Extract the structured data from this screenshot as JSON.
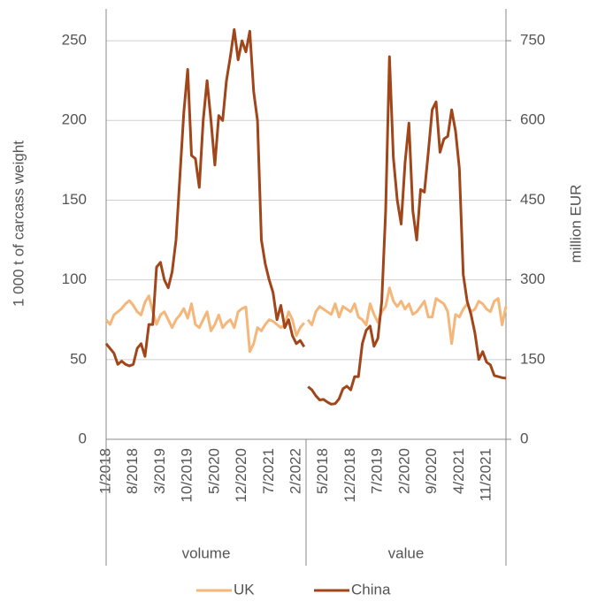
{
  "chart_data": {
    "type": "line",
    "y_label": "1 000 t of carcass weight",
    "y2_label": "million EUR",
    "ylim": [
      0,
      270
    ],
    "yticks": [
      0,
      50,
      100,
      150,
      200,
      250
    ],
    "y2lim": [
      0,
      810
    ],
    "y2ticks": [
      0,
      150,
      300,
      450,
      600,
      750
    ],
    "grid": true,
    "legend": "bottom",
    "series": [
      {
        "name": "UK",
        "color": "#f5b67a"
      },
      {
        "name": "China",
        "color": "#a0461a"
      }
    ],
    "groups": [
      {
        "name": "volume",
        "axis": "y",
        "categories": [
          "1/2018",
          null,
          null,
          null,
          null,
          null,
          null,
          "8/2018",
          null,
          null,
          null,
          null,
          null,
          null,
          "3/2019",
          null,
          null,
          null,
          null,
          null,
          null,
          "10/2019",
          null,
          null,
          null,
          null,
          null,
          null,
          "5/2020",
          null,
          null,
          null,
          null,
          null,
          null,
          "12/2020",
          null,
          null,
          null,
          null,
          null,
          null,
          "7/2021",
          null,
          null,
          null,
          null,
          null,
          null,
          "2/2022",
          null,
          null
        ],
        "series": [
          {
            "values": [
              75,
              72,
              78,
              80,
              82,
              85,
              87,
              84,
              80,
              78,
              86,
              90,
              80,
              72,
              78,
              80,
              75,
              70,
              75,
              78,
              82,
              76,
              85,
              72,
              70,
              75,
              80,
              68,
              72,
              78,
              70,
              73,
              75,
              70,
              80,
              82,
              83,
              55,
              60,
              70,
              68,
              72,
              75,
              74,
              72,
              70,
              72,
              80,
              75,
              65,
              70,
              73
            ]
          },
          {
            "values": [
              60,
              57,
              54,
              47,
              49,
              47,
              46,
              47,
              57,
              60,
              52,
              72,
              72,
              108,
              111,
              100,
              95,
              105,
              125,
              165,
              205,
              232,
              178,
              176,
              158,
              200,
              225,
              200,
              172,
              203,
              200,
              225,
              240,
              257,
              238,
              250,
              243,
              256,
              218,
              200,
              125,
              110,
              100,
              92,
              75,
              84,
              70,
              75,
              65,
              60,
              62,
              58
            ]
          }
        ]
      },
      {
        "name": "value",
        "axis": "y2",
        "categories": [
          null,
          null,
          null,
          null,
          "5/2018",
          null,
          null,
          null,
          null,
          null,
          null,
          "12/2018",
          null,
          null,
          null,
          null,
          null,
          null,
          "7/2019",
          null,
          null,
          null,
          null,
          null,
          null,
          "2/2020",
          null,
          null,
          null,
          null,
          null,
          null,
          "9/2020",
          null,
          null,
          null,
          null,
          null,
          null,
          "4/2021",
          null,
          null,
          null,
          null,
          null,
          null,
          "11/2021",
          null,
          null,
          null,
          null,
          null
        ],
        "series": [
          {
            "values": [
              225,
              215,
              240,
              250,
              245,
              240,
              235,
              255,
              230,
              250,
              245,
              240,
              255,
              230,
              225,
              215,
              255,
              235,
              220,
              240,
              250,
              285,
              260,
              250,
              260,
              245,
              255,
              235,
              240,
              250,
              260,
              230,
              230,
              265,
              260,
              255,
              240,
              180,
              235,
              230,
              245,
              255,
              240,
              245,
              260,
              255,
              245,
              240,
              260,
              265,
              215,
              250
            ]
          },
          {
            "values": [
              99,
              93,
              82,
              74,
              75,
              70,
              66,
              67,
              76,
              95,
              100,
              93,
              118,
              118,
              180,
              205,
              213,
              175,
              190,
              260,
              430,
              720,
              530,
              450,
              405,
              520,
              595,
              430,
              375,
              470,
              465,
              540,
              620,
              635,
              540,
              565,
              570,
              620,
              580,
              510,
              310,
              260,
              235,
              200,
              150,
              165,
              145,
              140,
              120,
              118,
              116,
              115
            ]
          }
        ]
      }
    ]
  }
}
